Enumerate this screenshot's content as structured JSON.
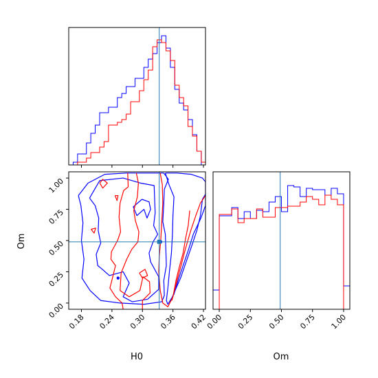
{
  "chart_data": {
    "type": "corner",
    "parameters": [
      "H0",
      "Om"
    ],
    "truths": {
      "H0": 0.333,
      "Om": 0.49
    },
    "colors": {
      "series_a": "#0000ff",
      "series_b": "#ff0000",
      "truth": "#1f77b4"
    },
    "panels": {
      "h0_hist": {
        "type": "histogram",
        "xlim": [
          0.155,
          0.424
        ],
        "bin_edges": [
          0.155,
          0.1637,
          0.1724,
          0.1811,
          0.1898,
          0.1984,
          0.2071,
          0.2158,
          0.2245,
          0.2332,
          0.2419,
          0.2506,
          0.2593,
          0.268,
          0.2767,
          0.2854,
          0.294,
          0.3027,
          0.3114,
          0.3201,
          0.3288,
          0.3375,
          0.3462,
          0.3549,
          0.3636,
          0.3723,
          0.381,
          0.3896,
          0.3983,
          0.407,
          0.4157,
          0.424
        ],
        "series": [
          {
            "color": "#0000ff",
            "counts": [
              0.0,
              0.02,
              0.08,
              0.08,
              0.16,
              0.23,
              0.29,
              0.38,
              0.38,
              0.42,
              0.42,
              0.49,
              0.52,
              0.57,
              0.57,
              0.63,
              0.63,
              0.71,
              0.77,
              0.81,
              0.89,
              0.94,
              0.85,
              0.71,
              0.55,
              0.45,
              0.4,
              0.33,
              0.22,
              0.1,
              0.0
            ]
          },
          {
            "color": "#ff0000",
            "counts": [
              0.0,
              0.0,
              0.02,
              0.02,
              0.05,
              0.09,
              0.09,
              0.13,
              0.17,
              0.29,
              0.29,
              0.31,
              0.33,
              0.37,
              0.46,
              0.46,
              0.54,
              0.62,
              0.69,
              0.86,
              0.91,
              0.89,
              0.83,
              0.76,
              0.58,
              0.49,
              0.43,
              0.28,
              0.21,
              0.1,
              0.02
            ]
          }
        ]
      },
      "om_hist": {
        "type": "histogram",
        "xlim": [
          -0.05,
          1.05
        ],
        "bin_edges": [
          -0.05,
          0.0,
          0.05,
          0.1,
          0.15,
          0.2,
          0.25,
          0.3,
          0.35,
          0.4,
          0.45,
          0.5,
          0.55,
          0.6,
          0.65,
          0.7,
          0.75,
          0.8,
          0.85,
          0.9,
          0.95,
          1.0,
          1.05
        ],
        "series": [
          {
            "color": "#0000ff",
            "counts": [
              0.14,
              0.68,
              0.68,
              0.74,
              0.66,
              0.71,
              0.66,
              0.72,
              0.71,
              0.78,
              0.82,
              0.71,
              0.9,
              0.89,
              0.82,
              0.88,
              0.87,
              0.87,
              0.83,
              0.88,
              0.84,
              0.17
            ]
          },
          {
            "color": "#ff0000",
            "counts": [
              0.0,
              0.69,
              0.69,
              0.73,
              0.63,
              0.66,
              0.66,
              0.73,
              0.67,
              0.67,
              0.74,
              0.74,
              0.75,
              0.75,
              0.78,
              0.82,
              0.8,
              0.76,
              0.83,
              0.8,
              0.76,
              0.0
            ]
          }
        ]
      },
      "joint": {
        "type": "contour",
        "xlim": [
          0.155,
          0.424
        ],
        "ylim": [
          -0.05,
          1.05
        ],
        "contours": [
          {
            "color": "#0000ff",
            "points": [
              [
                0.196,
                0.84
              ],
              [
                0.216,
                0.98
              ],
              [
                0.262,
                1.0
              ],
              [
                0.296,
                0.96
              ],
              [
                0.323,
                0.94
              ],
              [
                0.325,
                0.72
              ],
              [
                0.322,
                0.62
              ],
              [
                0.33,
                0.55
              ],
              [
                0.321,
                0.49
              ],
              [
                0.313,
                0.4
              ],
              [
                0.316,
                0.33
              ],
              [
                0.332,
                0.21
              ],
              [
                0.332,
                0.11
              ],
              [
                0.31,
                0.03
              ],
              [
                0.28,
                0.01
              ],
              [
                0.262,
                0.05
              ],
              [
                0.274,
                0.16
              ],
              [
                0.262,
                0.25
              ],
              [
                0.235,
                0.22
              ],
              [
                0.221,
                0.27
              ],
              [
                0.212,
                0.3
              ],
              [
                0.209,
                0.39
              ],
              [
                0.218,
                0.48
              ],
              [
                0.213,
                0.58
              ],
              [
                0.214,
                0.68
              ],
              [
                0.207,
                0.78
              ],
              [
                0.196,
                0.84
              ]
            ]
          },
          {
            "color": "#0000ff",
            "points": [
              [
                0.174,
                0.86
              ],
              [
                0.193,
                0.96
              ],
              [
                0.226,
                1.03
              ],
              [
                0.268,
                1.04
              ],
              [
                0.309,
                1.04
              ],
              [
                0.342,
                1.04
              ],
              [
                0.351,
                0.99
              ],
              [
                0.343,
                0.91
              ],
              [
                0.342,
                0.8
              ],
              [
                0.34,
                0.65
              ],
              [
                0.345,
                0.55
              ],
              [
                0.346,
                0.43
              ],
              [
                0.347,
                0.3
              ],
              [
                0.342,
                0.18
              ],
              [
                0.343,
                0.06
              ],
              [
                0.338,
                0.01
              ],
              [
                0.303,
                -0.01
              ],
              [
                0.256,
                0.0
              ],
              [
                0.218,
                0.02
              ],
              [
                0.197,
                0.1
              ],
              [
                0.181,
                0.2
              ],
              [
                0.185,
                0.35
              ],
              [
                0.18,
                0.5
              ],
              [
                0.183,
                0.64
              ],
              [
                0.179,
                0.78
              ],
              [
                0.174,
                0.86
              ]
            ]
          },
          {
            "color": "#0000ff",
            "points": [
              [
                0.299,
                0.83
              ],
              [
                0.282,
                0.77
              ],
              [
                0.289,
                0.7
              ],
              [
                0.303,
                0.75
              ],
              [
                0.309,
                0.68
              ],
              [
                0.316,
                0.75
              ],
              [
                0.313,
                0.81
              ],
              [
                0.299,
                0.83
              ]
            ]
          },
          {
            "color": "#0000ff",
            "points": [
              [
                0.345,
                1.04
              ],
              [
                0.368,
                1.04
              ],
              [
                0.396,
                1.03
              ],
              [
                0.418,
                1.0
              ],
              [
                0.424,
                0.97
              ],
              [
                0.424,
                0.78
              ],
              [
                0.415,
                0.68
              ],
              [
                0.4,
                0.55
              ],
              [
                0.39,
                0.42
              ],
              [
                0.38,
                0.3
              ],
              [
                0.37,
                0.18
              ],
              [
                0.362,
                0.07
              ],
              [
                0.35,
                -0.01
              ],
              [
                0.347,
                0.02
              ],
              [
                0.35,
                0.12
              ],
              [
                0.353,
                0.25
              ],
              [
                0.357,
                0.4
              ],
              [
                0.359,
                0.55
              ],
              [
                0.36,
                0.7
              ],
              [
                0.362,
                0.85
              ],
              [
                0.352,
                0.95
              ],
              [
                0.345,
                1.04
              ]
            ]
          },
          {
            "color": "#0000ff",
            "points": [
              [
                0.355,
                0.01
              ],
              [
                0.362,
                0.08
              ],
              [
                0.375,
                0.2
              ],
              [
                0.386,
                0.33
              ],
              [
                0.398,
                0.47
              ],
              [
                0.407,
                0.58
              ],
              [
                0.414,
                0.7
              ],
              [
                0.418,
                0.83
              ],
              [
                0.424,
                0.87
              ]
            ]
          },
          {
            "color": "#ff0000",
            "points": [
              [
                0.271,
                1.04
              ],
              [
                0.272,
                0.93
              ],
              [
                0.263,
                0.9
              ],
              [
                0.256,
                0.8
              ],
              [
                0.254,
                0.69
              ],
              [
                0.257,
                0.57
              ],
              [
                0.251,
                0.5
              ],
              [
                0.239,
                0.41
              ],
              [
                0.238,
                0.35
              ],
              [
                0.247,
                0.3
              ],
              [
                0.241,
                0.2
              ],
              [
                0.236,
                0.12
              ],
              [
                0.247,
                0.05
              ],
              [
                0.26,
                0.0
              ],
              [
                0.262,
                -0.05
              ]
            ]
          },
          {
            "color": "#ff0000",
            "points": [
              [
                0.216,
                0.96
              ],
              [
                0.222,
                0.92
              ],
              [
                0.231,
                0.96
              ],
              [
                0.222,
                0.99
              ],
              [
                0.216,
                0.96
              ]
            ]
          },
          {
            "color": "#ff0000",
            "points": [
              [
                0.288,
                1.04
              ],
              [
                0.292,
                0.96
              ],
              [
                0.29,
                0.85
              ],
              [
                0.283,
                0.74
              ],
              [
                0.286,
                0.66
              ],
              [
                0.293,
                0.57
              ],
              [
                0.291,
                0.49
              ],
              [
                0.279,
                0.43
              ],
              [
                0.269,
                0.35
              ],
              [
                0.258,
                0.24
              ],
              [
                0.256,
                0.1
              ],
              [
                0.274,
                0.05
              ],
              [
                0.295,
                0.1
              ],
              [
                0.301,
                0.21
              ],
              [
                0.314,
                0.17
              ],
              [
                0.315,
                0.08
              ],
              [
                0.3,
                0.02
              ],
              [
                0.3,
                -0.05
              ]
            ]
          },
          {
            "color": "#ff0000",
            "points": [
              [
                0.246,
                0.86
              ],
              [
                0.25,
                0.82
              ],
              [
                0.252,
                0.86
              ],
              [
                0.246,
                0.86
              ]
            ]
          },
          {
            "color": "#ff0000",
            "points": [
              [
                0.199,
                0.59
              ],
              [
                0.205,
                0.56
              ],
              [
                0.208,
                0.6
              ],
              [
                0.199,
                0.59
              ]
            ]
          },
          {
            "color": "#ff0000",
            "points": [
              [
                0.294,
                0.24
              ],
              [
                0.305,
                0.27
              ],
              [
                0.31,
                0.22
              ],
              [
                0.3,
                0.2
              ],
              [
                0.294,
                0.24
              ]
            ]
          },
          {
            "color": "#ff0000",
            "points": [
              [
                0.335,
                1.04
              ],
              [
                0.339,
                0.95
              ],
              [
                0.34,
                0.8
              ],
              [
                0.338,
                0.65
              ],
              [
                0.336,
                0.5
              ],
              [
                0.333,
                0.37
              ],
              [
                0.332,
                0.25
              ],
              [
                0.335,
                0.1
              ],
              [
                0.34,
                0.0
              ],
              [
                0.35,
                -0.03
              ],
              [
                0.36,
                0.05
              ],
              [
                0.366,
                0.18
              ],
              [
                0.372,
                0.28
              ],
              [
                0.38,
                0.4
              ],
              [
                0.385,
                0.52
              ],
              [
                0.39,
                0.62
              ],
              [
                0.393,
                0.74
              ]
            ]
          },
          {
            "color": "#ff0000",
            "points": [
              [
                0.358,
                0.02
              ],
              [
                0.366,
                0.15
              ],
              [
                0.376,
                0.3
              ],
              [
                0.385,
                0.44
              ],
              [
                0.395,
                0.58
              ],
              [
                0.405,
                0.7
              ],
              [
                0.414,
                0.8
              ],
              [
                0.424,
                0.86
              ]
            ]
          }
        ],
        "markers": [
          {
            "color": "#0000ff",
            "point": [
              0.336,
              0.49
            ]
          },
          {
            "color": "#0000ff",
            "point": [
              0.252,
              0.2
            ]
          }
        ]
      }
    },
    "axes": {
      "h0": {
        "label": "H0",
        "ticks": [
          0.18,
          0.24,
          0.3,
          0.36,
          0.42
        ],
        "tick_labels": [
          "0.18",
          "0.24",
          "0.30",
          "0.36",
          "0.42"
        ]
      },
      "om_y": {
        "label": "Om",
        "ticks": [
          0.0,
          0.25,
          0.5,
          0.75,
          1.0
        ],
        "tick_labels": [
          "0.00",
          "0.25",
          "0.50",
          "0.75",
          "1.00"
        ]
      },
      "om_x": {
        "label": "Om",
        "ticks": [
          0.0,
          0.25,
          0.5,
          0.75,
          1.0
        ],
        "tick_labels": [
          "0.00",
          "0.25",
          "0.50",
          "0.75",
          "1.00"
        ]
      }
    }
  }
}
